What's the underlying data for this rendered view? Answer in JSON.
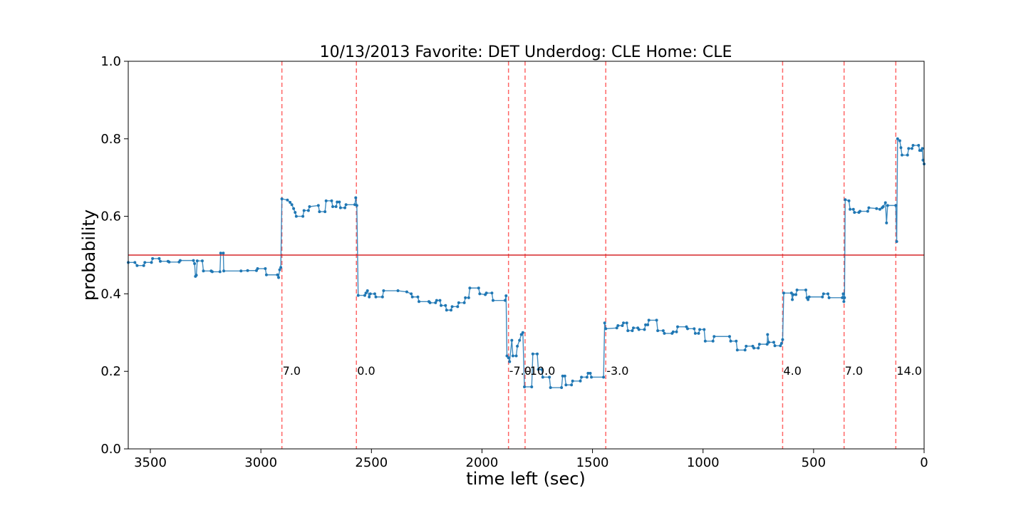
{
  "chart_data": {
    "type": "line",
    "title": "10/13/2013 Favorite: DET Underdog: CLE Home: CLE",
    "xlabel": "time left (sec)",
    "ylabel": "probability",
    "xlim": [
      3600,
      0
    ],
    "ylim": [
      0.0,
      1.0
    ],
    "x_ticks": [
      3500,
      3000,
      2500,
      2000,
      1500,
      1000,
      500,
      0
    ],
    "y_ticks": [
      0.0,
      0.2,
      0.4,
      0.6,
      0.8,
      1.0
    ],
    "x_tick_labels": [
      "3500",
      "3000",
      "2500",
      "2000",
      "1500",
      "1000",
      "500",
      "0"
    ],
    "y_tick_labels": [
      "0.0",
      "0.2",
      "0.4",
      "0.6",
      "0.8",
      "1.0"
    ],
    "grid": false,
    "reference_line": {
      "y": 0.5,
      "color": "#d62728"
    },
    "series": [
      {
        "color": "#1f77b4",
        "points": [
          [
            3600,
            0.481
          ],
          [
            3570,
            0.481
          ],
          [
            3560,
            0.473
          ],
          [
            3530,
            0.473
          ],
          [
            3525,
            0.481
          ],
          [
            3495,
            0.481
          ],
          [
            3490,
            0.491
          ],
          [
            3460,
            0.491
          ],
          [
            3455,
            0.484
          ],
          [
            3420,
            0.484
          ],
          [
            3415,
            0.482
          ],
          [
            3370,
            0.482
          ],
          [
            3365,
            0.486
          ],
          [
            3305,
            0.486
          ],
          [
            3300,
            0.478
          ],
          [
            3296,
            0.445
          ],
          [
            3292,
            0.448
          ],
          [
            3288,
            0.485
          ],
          [
            3265,
            0.485
          ],
          [
            3260,
            0.459
          ],
          [
            3225,
            0.459
          ],
          [
            3220,
            0.457
          ],
          [
            3185,
            0.457
          ],
          [
            3182,
            0.505
          ],
          [
            3170,
            0.505
          ],
          [
            3168,
            0.459
          ],
          [
            3090,
            0.459
          ],
          [
            3060,
            0.46
          ],
          [
            3020,
            0.46
          ],
          [
            3015,
            0.465
          ],
          [
            2980,
            0.465
          ],
          [
            2975,
            0.449
          ],
          [
            2925,
            0.449
          ],
          [
            2920,
            0.442
          ],
          [
            2915,
            0.462
          ],
          [
            2910,
            0.468
          ],
          [
            2905,
            0.645
          ],
          [
            2880,
            0.642
          ],
          [
            2868,
            0.636
          ],
          [
            2860,
            0.63
          ],
          [
            2852,
            0.62
          ],
          [
            2845,
            0.61
          ],
          [
            2840,
            0.6
          ],
          [
            2810,
            0.6
          ],
          [
            2805,
            0.615
          ],
          [
            2785,
            0.615
          ],
          [
            2780,
            0.625
          ],
          [
            2740,
            0.628
          ],
          [
            2735,
            0.612
          ],
          [
            2710,
            0.612
          ],
          [
            2705,
            0.64
          ],
          [
            2680,
            0.64
          ],
          [
            2675,
            0.625
          ],
          [
            2660,
            0.625
          ],
          [
            2655,
            0.637
          ],
          [
            2645,
            0.637
          ],
          [
            2640,
            0.622
          ],
          [
            2620,
            0.622
          ],
          [
            2615,
            0.63
          ],
          [
            2575,
            0.63
          ],
          [
            2571,
            0.648
          ],
          [
            2566,
            0.628
          ],
          [
            2560,
            0.396
          ],
          [
            2530,
            0.396
          ],
          [
            2525,
            0.402
          ],
          [
            2518,
            0.408
          ],
          [
            2510,
            0.392
          ],
          [
            2505,
            0.4
          ],
          [
            2485,
            0.4
          ],
          [
            2480,
            0.392
          ],
          [
            2450,
            0.392
          ],
          [
            2445,
            0.408
          ],
          [
            2380,
            0.408
          ],
          [
            2340,
            0.405
          ],
          [
            2320,
            0.4
          ],
          [
            2315,
            0.392
          ],
          [
            2290,
            0.392
          ],
          [
            2285,
            0.38
          ],
          [
            2240,
            0.38
          ],
          [
            2235,
            0.377
          ],
          [
            2210,
            0.377
          ],
          [
            2205,
            0.383
          ],
          [
            2190,
            0.383
          ],
          [
            2185,
            0.37
          ],
          [
            2165,
            0.37
          ],
          [
            2160,
            0.358
          ],
          [
            2140,
            0.358
          ],
          [
            2135,
            0.367
          ],
          [
            2110,
            0.367
          ],
          [
            2105,
            0.377
          ],
          [
            2080,
            0.377
          ],
          [
            2075,
            0.39
          ],
          [
            2060,
            0.39
          ],
          [
            2055,
            0.415
          ],
          [
            2015,
            0.415
          ],
          [
            2010,
            0.4
          ],
          [
            1985,
            0.398
          ],
          [
            1980,
            0.402
          ],
          [
            1955,
            0.402
          ],
          [
            1950,
            0.383
          ],
          [
            1895,
            0.383
          ],
          [
            1891,
            0.395
          ],
          [
            1887,
            0.24
          ],
          [
            1880,
            0.235
          ],
          [
            1875,
            0.225
          ],
          [
            1865,
            0.28
          ],
          [
            1860,
            0.24
          ],
          [
            1845,
            0.24
          ],
          [
            1840,
            0.265
          ],
          [
            1830,
            0.28
          ],
          [
            1822,
            0.295
          ],
          [
            1815,
            0.3
          ],
          [
            1808,
            0.16
          ],
          [
            1775,
            0.16
          ],
          [
            1770,
            0.245
          ],
          [
            1750,
            0.245
          ],
          [
            1745,
            0.205
          ],
          [
            1730,
            0.205
          ],
          [
            1725,
            0.185
          ],
          [
            1695,
            0.185
          ],
          [
            1690,
            0.158
          ],
          [
            1640,
            0.158
          ],
          [
            1635,
            0.188
          ],
          [
            1625,
            0.188
          ],
          [
            1620,
            0.165
          ],
          [
            1595,
            0.165
          ],
          [
            1590,
            0.175
          ],
          [
            1555,
            0.175
          ],
          [
            1550,
            0.185
          ],
          [
            1525,
            0.185
          ],
          [
            1520,
            0.195
          ],
          [
            1510,
            0.195
          ],
          [
            1505,
            0.185
          ],
          [
            1450,
            0.185
          ],
          [
            1445,
            0.325
          ],
          [
            1440,
            0.31
          ],
          [
            1390,
            0.312
          ],
          [
            1385,
            0.318
          ],
          [
            1365,
            0.318
          ],
          [
            1360,
            0.325
          ],
          [
            1345,
            0.325
          ],
          [
            1340,
            0.305
          ],
          [
            1320,
            0.305
          ],
          [
            1315,
            0.312
          ],
          [
            1295,
            0.312
          ],
          [
            1290,
            0.308
          ],
          [
            1265,
            0.308
          ],
          [
            1260,
            0.32
          ],
          [
            1250,
            0.32
          ],
          [
            1245,
            0.332
          ],
          [
            1210,
            0.332
          ],
          [
            1205,
            0.305
          ],
          [
            1180,
            0.305
          ],
          [
            1175,
            0.298
          ],
          [
            1140,
            0.298
          ],
          [
            1135,
            0.302
          ],
          [
            1120,
            0.302
          ],
          [
            1115,
            0.315
          ],
          [
            1075,
            0.315
          ],
          [
            1070,
            0.31
          ],
          [
            1040,
            0.31
          ],
          [
            1035,
            0.298
          ],
          [
            1020,
            0.298
          ],
          [
            1015,
            0.308
          ],
          [
            995,
            0.308
          ],
          [
            990,
            0.278
          ],
          [
            955,
            0.278
          ],
          [
            950,
            0.29
          ],
          [
            880,
            0.29
          ],
          [
            875,
            0.278
          ],
          [
            850,
            0.278
          ],
          [
            845,
            0.255
          ],
          [
            810,
            0.255
          ],
          [
            805,
            0.265
          ],
          [
            775,
            0.265
          ],
          [
            770,
            0.26
          ],
          [
            750,
            0.26
          ],
          [
            745,
            0.27
          ],
          [
            710,
            0.27
          ],
          [
            708,
            0.295
          ],
          [
            703,
            0.275
          ],
          [
            680,
            0.275
          ],
          [
            675,
            0.266
          ],
          [
            650,
            0.266
          ],
          [
            645,
            0.272
          ],
          [
            640,
            0.282
          ],
          [
            635,
            0.402
          ],
          [
            600,
            0.402
          ],
          [
            596,
            0.385
          ],
          [
            592,
            0.398
          ],
          [
            580,
            0.398
          ],
          [
            575,
            0.41
          ],
          [
            535,
            0.41
          ],
          [
            530,
            0.39
          ],
          [
            525,
            0.385
          ],
          [
            520,
            0.392
          ],
          [
            460,
            0.392
          ],
          [
            455,
            0.4
          ],
          [
            435,
            0.4
          ],
          [
            430,
            0.39
          ],
          [
            370,
            0.39
          ],
          [
            366,
            0.4
          ],
          [
            363,
            0.38
          ],
          [
            360,
            0.39
          ],
          [
            357,
            0.643
          ],
          [
            340,
            0.64
          ],
          [
            335,
            0.618
          ],
          [
            320,
            0.618
          ],
          [
            315,
            0.61
          ],
          [
            295,
            0.61
          ],
          [
            290,
            0.613
          ],
          [
            255,
            0.613
          ],
          [
            250,
            0.622
          ],
          [
            215,
            0.62
          ],
          [
            200,
            0.618
          ],
          [
            190,
            0.622
          ],
          [
            185,
            0.625
          ],
          [
            175,
            0.635
          ],
          [
            170,
            0.583
          ],
          [
            165,
            0.628
          ],
          [
            128,
            0.628
          ],
          [
            124,
            0.535
          ],
          [
            120,
            0.8
          ],
          [
            110,
            0.795
          ],
          [
            105,
            0.777
          ],
          [
            100,
            0.758
          ],
          [
            75,
            0.758
          ],
          [
            70,
            0.775
          ],
          [
            55,
            0.775
          ],
          [
            50,
            0.783
          ],
          [
            25,
            0.783
          ],
          [
            20,
            0.77
          ],
          [
            12,
            0.77
          ],
          [
            8,
            0.775
          ],
          [
            5,
            0.745
          ],
          [
            0,
            0.735
          ]
        ]
      }
    ],
    "events": [
      {
        "x": 2905,
        "label": "7.0"
      },
      {
        "x": 2568,
        "label": "0.0"
      },
      {
        "x": 1880,
        "label": "-7.0"
      },
      {
        "x": 1805,
        "label": "-10.0"
      },
      {
        "x": 1440,
        "label": "-3.0"
      },
      {
        "x": 640,
        "label": "4.0"
      },
      {
        "x": 362,
        "label": "7.0"
      },
      {
        "x": 128,
        "label": "14.0"
      }
    ],
    "event_line_color": "#ff6666"
  }
}
